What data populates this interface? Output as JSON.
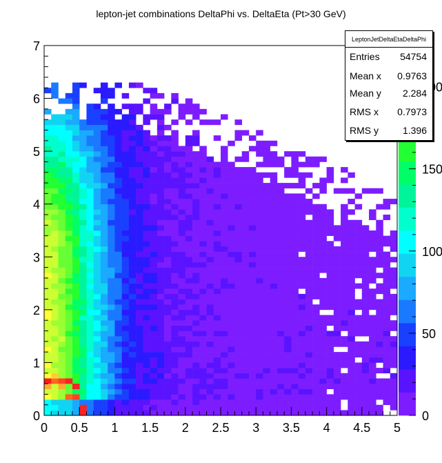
{
  "chart_data": {
    "type": "heatmap",
    "title": "lepton-jet combinations DeltaPhi vs. DeltaEta (Pt>30 GeV)",
    "xlabel": "",
    "ylabel": "",
    "xlim": [
      0,
      5
    ],
    "ylim": [
      0,
      7
    ],
    "x_ticks": [
      "0",
      "0.5",
      "1",
      "1.5",
      "2",
      "2.5",
      "3",
      "3.5",
      "4",
      "4.5",
      "5"
    ],
    "y_ticks": [
      "0",
      "1",
      "2",
      "3",
      "4",
      "5",
      "6",
      "7"
    ],
    "z_ticks": [
      "0",
      "50",
      "100",
      "150",
      "200"
    ],
    "z_range": [
      0,
      225
    ],
    "bins": {
      "nx": 50,
      "ny": 70
    },
    "palette": [
      "#7d1dff",
      "#5a13ff",
      "#2a1aff",
      "#1a40ff",
      "#1a7aff",
      "#1aaaff",
      "#11d4f2",
      "#00ffff",
      "#00ffcc",
      "#00f59a",
      "#00ff66",
      "#22ff33",
      "#66ff33",
      "#99ff33",
      "#ccff33",
      "#ffff33"
    ],
    "stats": {
      "name": "LeptonJetDeltaEtaDeltaPhi",
      "rows": [
        {
          "label": "Entries",
          "value": "54754"
        },
        {
          "label": "Mean x",
          "value": "0.9763"
        },
        {
          "label": "Mean y",
          "value": "2.284"
        },
        {
          "label": "RMS x",
          "value": "0.7973"
        },
        {
          "label": "RMS y",
          "value": "1.396"
        }
      ]
    },
    "hot_cells": [
      {
        "x": 0.05,
        "y": 0.65,
        "color": "#ff1a1a"
      },
      {
        "x": 0.15,
        "y": 0.65,
        "color": "#ff6622"
      },
      {
        "x": 0.25,
        "y": 0.65,
        "color": "#ff4422"
      },
      {
        "x": 0.35,
        "y": 0.65,
        "color": "#ff2222"
      },
      {
        "x": 0.45,
        "y": 0.55,
        "color": "#ff2222"
      },
      {
        "x": 0.55,
        "y": 0.05,
        "color": "#ff2222"
      },
      {
        "x": 0.55,
        "y": 0.15,
        "color": "#ff2222"
      },
      {
        "x": 0.45,
        "y": 0.35,
        "color": "#ff4422"
      },
      {
        "x": 0.35,
        "y": 0.35,
        "color": "#ff6622"
      },
      {
        "x": 0.25,
        "y": 0.55,
        "color": "#ffaa33"
      },
      {
        "x": 0.05,
        "y": 0.55,
        "color": "#ffaa33"
      },
      {
        "x": 0.15,
        "y": 0.75,
        "color": "#ffcc33"
      }
    ]
  }
}
